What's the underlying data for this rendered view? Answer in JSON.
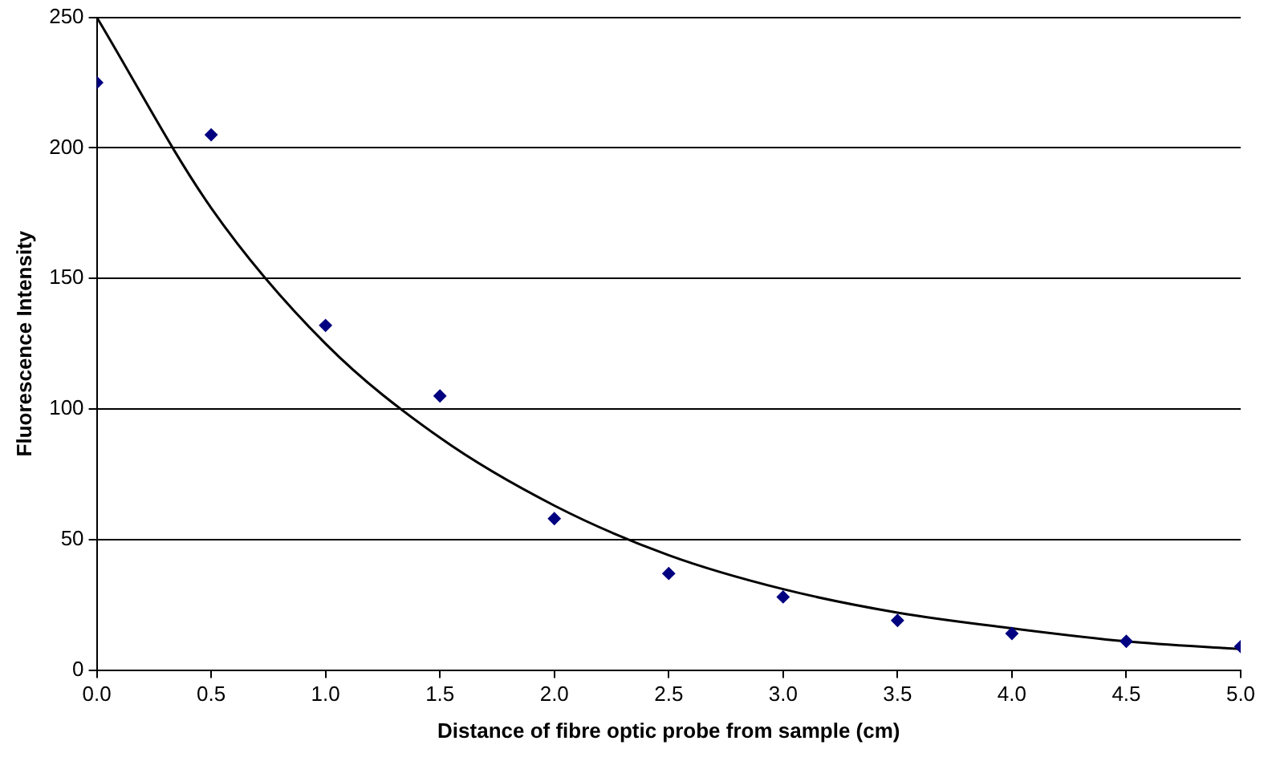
{
  "chart_data": {
    "type": "scatter",
    "xlabel": "Distance of fibre optic probe from sample (cm)",
    "ylabel": "Fluorescence Intensity",
    "xlim": [
      0,
      5
    ],
    "xticks": [
      {
        "value": 0,
        "label": "0.0"
      },
      {
        "value": 0.5,
        "label": "0.5"
      },
      {
        "value": 1,
        "label": "1.0"
      },
      {
        "value": 1.5,
        "label": "1.5"
      },
      {
        "value": 2,
        "label": "2.0"
      },
      {
        "value": 2.5,
        "label": "2.5"
      },
      {
        "value": 3,
        "label": "3.0"
      },
      {
        "value": 3.5,
        "label": "3.5"
      },
      {
        "value": 4,
        "label": "4.0"
      },
      {
        "value": 4.5,
        "label": "4.5"
      },
      {
        "value": 5,
        "label": "5.0"
      }
    ],
    "ylim": [
      0,
      250
    ],
    "yticks": [
      0,
      50,
      100,
      150,
      200,
      250
    ],
    "grid": "y",
    "legend": false,
    "series": [
      {
        "type": "scatter",
        "color": "#000080",
        "marker": "diamond",
        "x": [
          0,
          0.5,
          1,
          1.5,
          2,
          2.5,
          3,
          3.5,
          4,
          4.5,
          5
        ],
        "values": [
          225,
          205,
          132,
          105,
          58,
          37,
          28,
          19,
          14,
          11,
          9
        ]
      },
      {
        "type": "line",
        "color": "#000000",
        "marker": "none",
        "line_style": "solid",
        "x": [
          0,
          0.5,
          1,
          1.5,
          2,
          2.5,
          3,
          3.5,
          4,
          4.5,
          5
        ],
        "values": [
          250,
          177,
          125,
          89,
          63,
          44,
          31,
          22,
          16,
          11,
          8
        ]
      }
    ]
  }
}
